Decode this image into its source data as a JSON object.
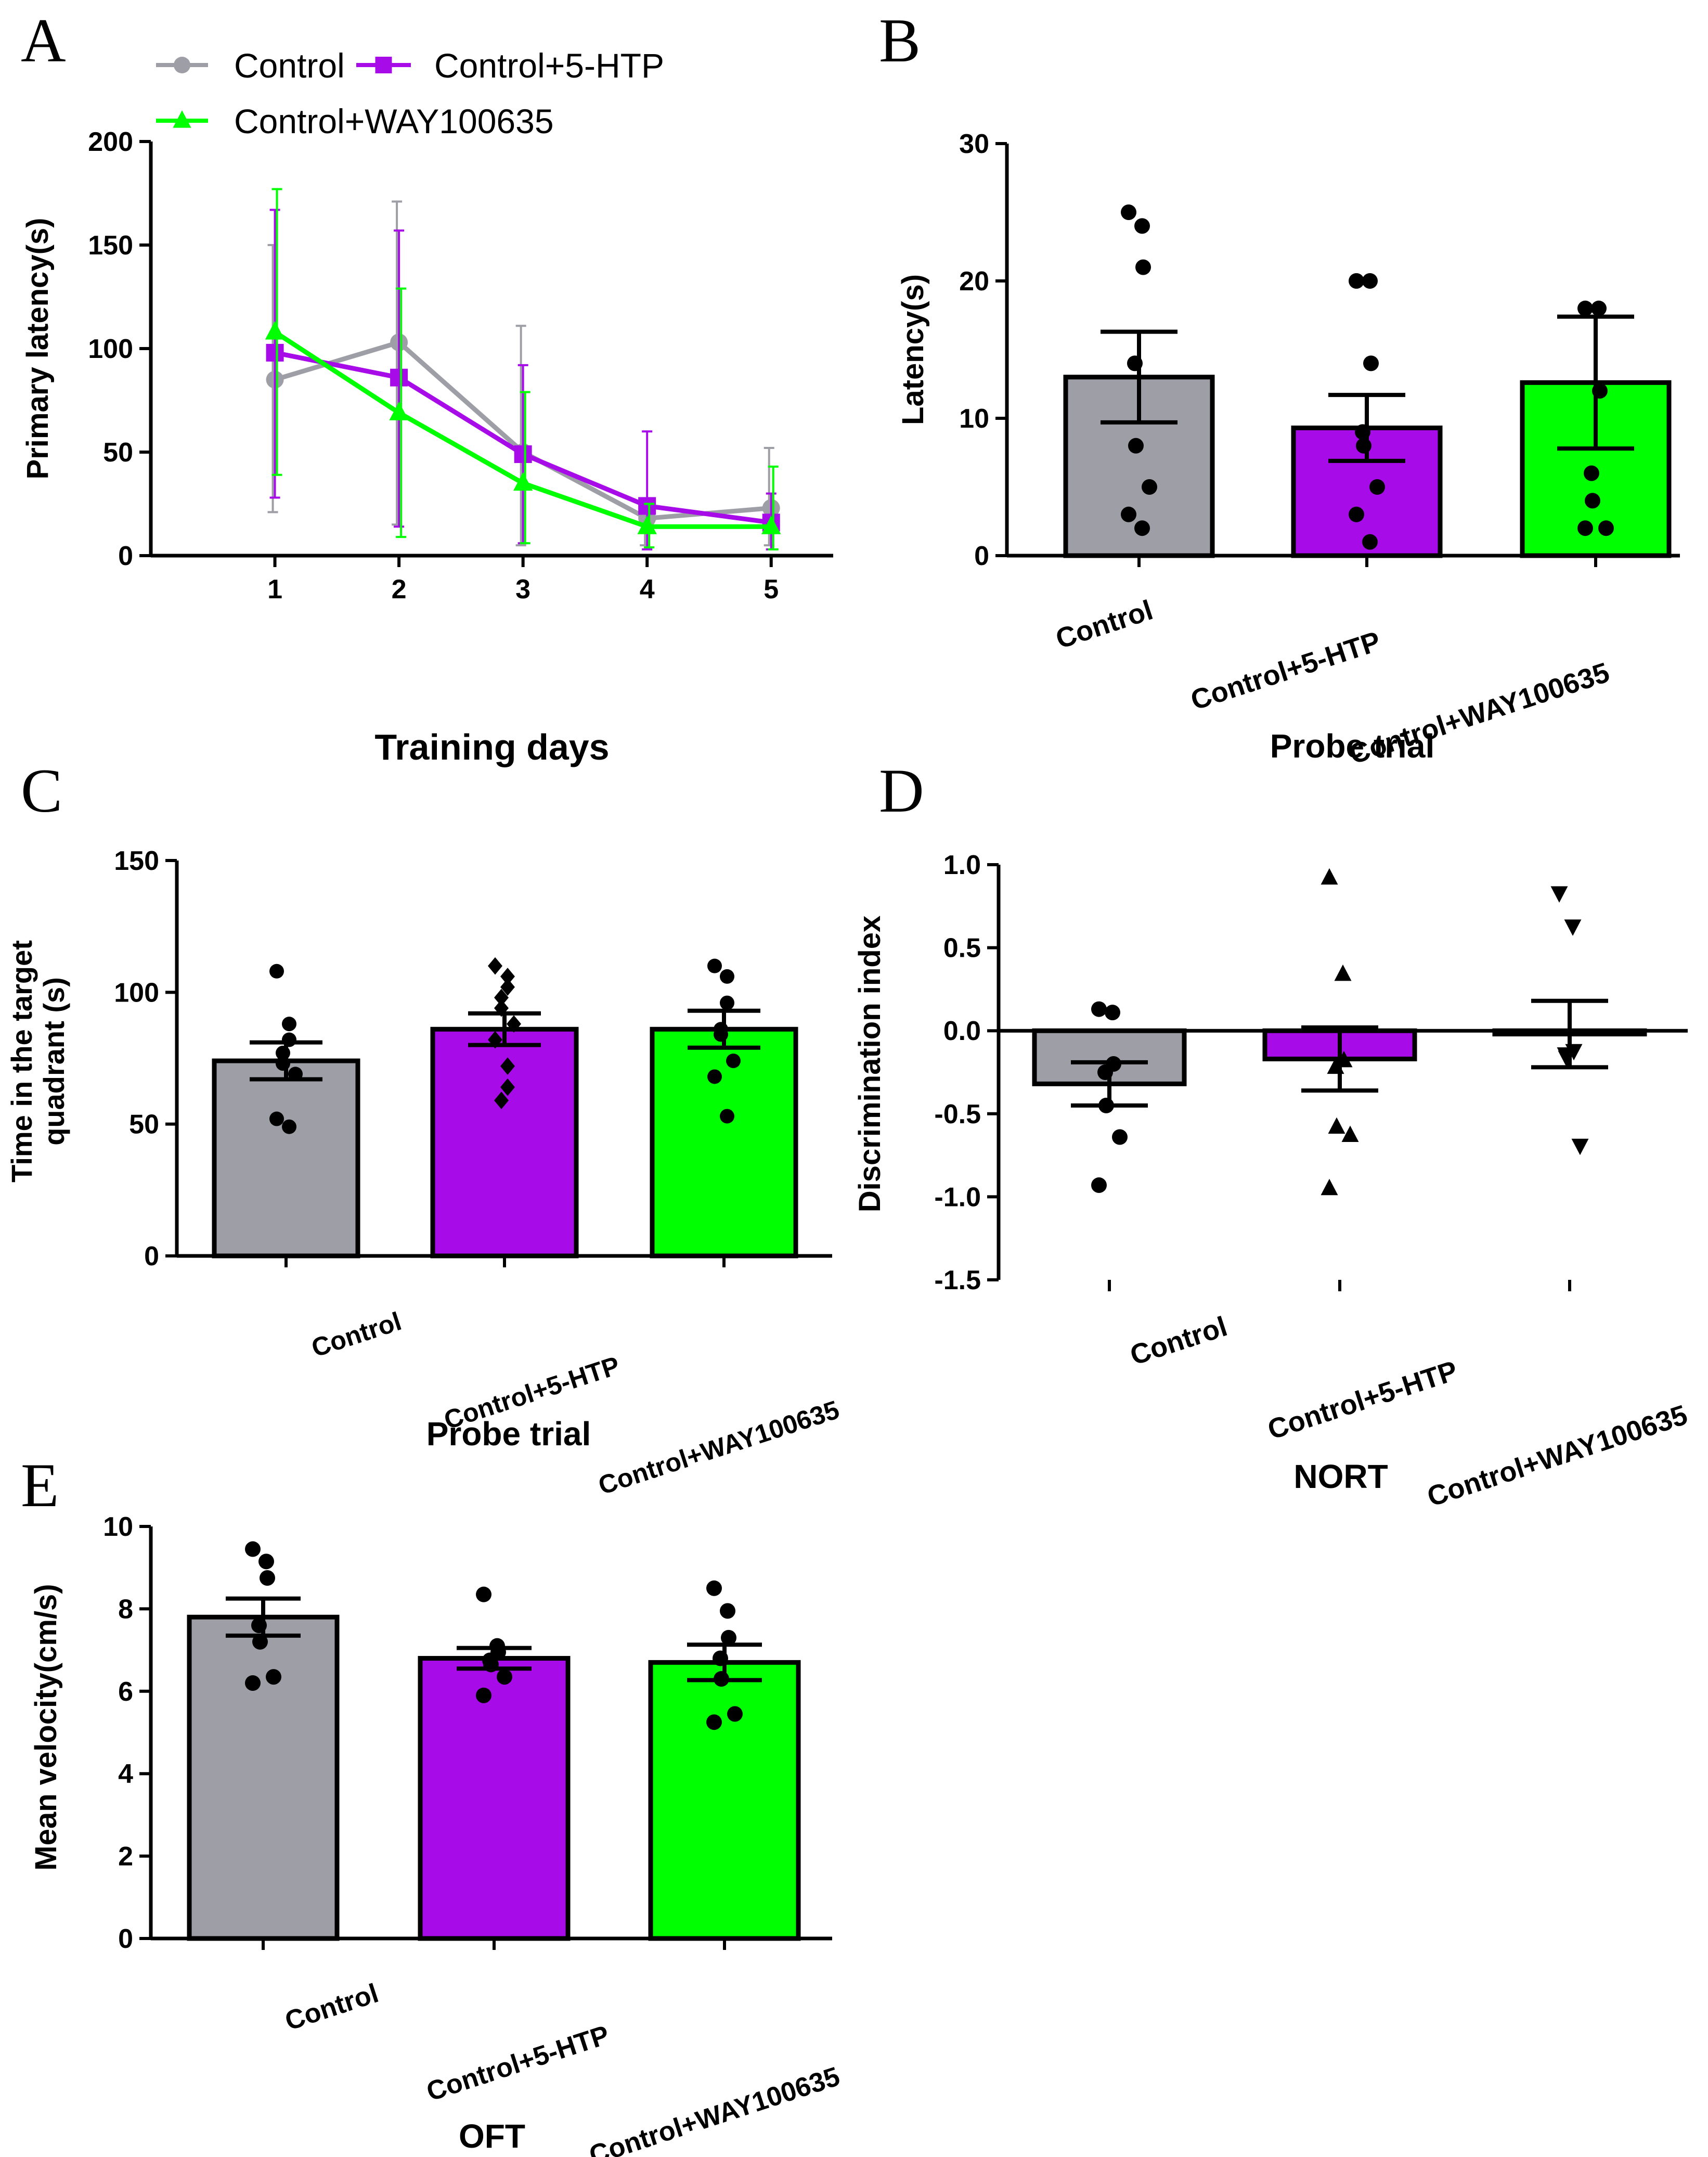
{
  "colors": {
    "control": "#9e9ea6",
    "htp": "#a70ce8",
    "way": "#00ff00",
    "axis": "#000000",
    "errorbar": "#000000"
  },
  "groups": [
    "Control",
    "Control+5-HTP",
    "Control+WAY100635"
  ],
  "chart_data": [
    {
      "panel": "A",
      "type": "line",
      "xlabel": "Training days",
      "ylabel": "Primary latency(s)",
      "x": [
        1,
        2,
        3,
        4,
        5
      ],
      "xticks": [
        "1",
        "2",
        "3",
        "4",
        "5"
      ],
      "yticks": [
        "0",
        "50",
        "100",
        "150",
        "200"
      ],
      "ytick_values": [
        0,
        50,
        100,
        150,
        200
      ],
      "ylim": [
        0,
        200
      ],
      "xlim": [
        0.0,
        5.5
      ],
      "legend": [
        "Control",
        "Control+5-HTP",
        "Control+WAY100635"
      ],
      "series": [
        {
          "name": "Control",
          "marker": "circle",
          "color": "#9e9ea6",
          "values": [
            85,
            103,
            50,
            18,
            23
          ],
          "err_low": [
            21,
            15,
            5,
            5,
            5
          ],
          "err_high": [
            150,
            171,
            111,
            26,
            52
          ]
        },
        {
          "name": "Control+5-HTP",
          "marker": "square",
          "color": "#a70ce8",
          "values": [
            98,
            86,
            49,
            24,
            16
          ],
          "err_low": [
            28,
            14,
            6,
            3,
            3
          ],
          "err_high": [
            167,
            157,
            92,
            60,
            30
          ]
        },
        {
          "name": "Control+WAY100635",
          "marker": "triangle",
          "color": "#00ff00",
          "values": [
            108,
            69,
            35,
            14,
            14
          ],
          "err_low": [
            39,
            9,
            6,
            4,
            3
          ],
          "err_high": [
            177,
            129,
            79,
            25,
            43
          ]
        }
      ]
    },
    {
      "panel": "B",
      "type": "bar",
      "title": "",
      "xlabel": "Probe trial",
      "ylabel": "Latency(s)",
      "categories": [
        "Control",
        "Control+5-HTP",
        "Control+WAY100635"
      ],
      "values": [
        13,
        9.3,
        12.6
      ],
      "sem": [
        3.3,
        2.4,
        4.8
      ],
      "ylim": [
        0,
        30
      ],
      "yticks": [
        "0",
        "10",
        "20",
        "30"
      ],
      "ytick_values": [
        0,
        10,
        20,
        30
      ],
      "points": [
        [
          25,
          24,
          21,
          14,
          8,
          5,
          3,
          2
        ],
        [
          20,
          20,
          14,
          9,
          8,
          5,
          3,
          1
        ],
        [
          18,
          18,
          12,
          6,
          4,
          2,
          2
        ]
      ],
      "markers": [
        "circle",
        "circle",
        "circle"
      ]
    },
    {
      "panel": "C",
      "type": "bar",
      "xlabel": "Probe trial",
      "ylabel": "Time in the target quadrant (s)",
      "ylabel_lines": [
        "Time in the target",
        "quadrant (s)"
      ],
      "categories": [
        "Control",
        "Control+5-HTP",
        "Control+WAY100635"
      ],
      "values": [
        74,
        86,
        86
      ],
      "sem": [
        7,
        6,
        7
      ],
      "ylim": [
        0,
        150
      ],
      "yticks": [
        "0",
        "50",
        "100",
        "150"
      ],
      "ytick_values": [
        0,
        50,
        100,
        150
      ],
      "points": [
        [
          108,
          88,
          82,
          77,
          73,
          69,
          52,
          49
        ],
        [
          110,
          106,
          102,
          98,
          94,
          88,
          82,
          72,
          64,
          59
        ],
        [
          110,
          106,
          96,
          86,
          84,
          74,
          68,
          53
        ]
      ],
      "markers": [
        "circle",
        "diamond",
        "circle"
      ]
    },
    {
      "panel": "D",
      "type": "bar",
      "xlabel": "NORT",
      "ylabel": "Discrimination index",
      "categories": [
        "Control",
        "Control+5-HTP",
        "Control+WAY100635"
      ],
      "values": [
        -0.32,
        -0.17,
        -0.02
      ],
      "sem": [
        0.13,
        0.19,
        0.2
      ],
      "ylim": [
        -1.5,
        1.0
      ],
      "yticks": [
        "1.0",
        "0.5",
        "0.0",
        "-0.5",
        "-1.0",
        "-1.5"
      ],
      "ytick_values": [
        1.0,
        0.5,
        0.0,
        -0.5,
        -1.0,
        -1.5
      ],
      "points": [
        [
          0.13,
          0.11,
          -0.2,
          -0.25,
          -0.45,
          -0.64,
          -0.93
        ],
        [
          0.92,
          0.34,
          -0.18,
          -0.22,
          -0.58,
          -0.63,
          -0.95
        ],
        [
          0.83,
          0.63,
          -0.12,
          -0.14,
          -0.16,
          -0.69
        ]
      ],
      "markers": [
        "circle",
        "triangle",
        "triangle-down"
      ]
    },
    {
      "panel": "E",
      "type": "bar",
      "xlabel": "OFT",
      "ylabel": "Mean velocity(cm/s)",
      "categories": [
        "Control",
        "Control+5-HTP",
        "Control+WAY100635"
      ],
      "values": [
        7.8,
        6.8,
        6.7
      ],
      "sem": [
        0.45,
        0.25,
        0.43
      ],
      "ylim": [
        0,
        10
      ],
      "yticks": [
        "0",
        "2",
        "4",
        "6",
        "8",
        "10"
      ],
      "ytick_values": [
        0,
        2,
        4,
        6,
        8,
        10
      ],
      "points": [
        [
          9.45,
          9.15,
          8.75,
          7.6,
          7.2,
          6.35,
          6.2
        ],
        [
          8.35,
          7.1,
          6.95,
          6.75,
          6.65,
          6.35,
          5.9
        ],
        [
          8.5,
          7.95,
          7.3,
          6.8,
          6.3,
          5.45,
          5.25
        ]
      ],
      "markers": [
        "circle",
        "circle",
        "circle"
      ]
    }
  ]
}
